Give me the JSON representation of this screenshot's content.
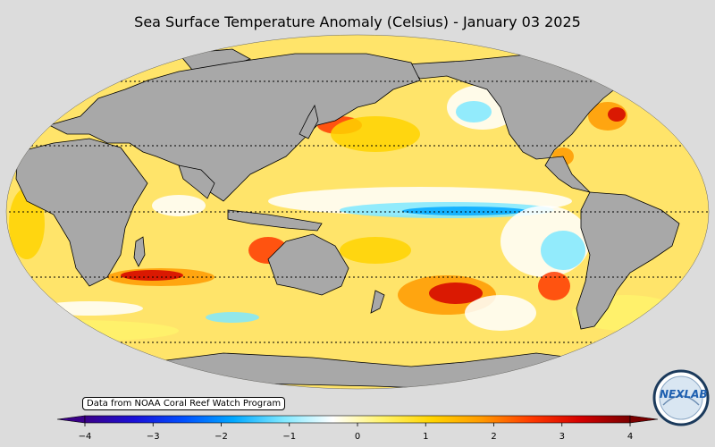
{
  "title": "Sea Surface Temperature Anomaly (Celsius) - January 03 2025",
  "credit": "Data from NOAA Coral Reef Watch Program",
  "logo_text": "NEXLAB",
  "colorbar": {
    "ticks": [
      "−4",
      "−3",
      "−2",
      "−1",
      "0",
      "1",
      "2",
      "3",
      "4"
    ],
    "range": [
      -4,
      4
    ],
    "colors": [
      "#3a0088",
      "#1a10d8",
      "#0050ff",
      "#00a8ff",
      "#7fe8ff",
      "#ffffff",
      "#fff36b",
      "#ffd400",
      "#ff9a00",
      "#ff3a00",
      "#d40000",
      "#7a0000"
    ]
  },
  "colors": {
    "background": "#dcdcdc",
    "land": "#a8a8a8",
    "ocean_base": "#ffe46a"
  }
}
